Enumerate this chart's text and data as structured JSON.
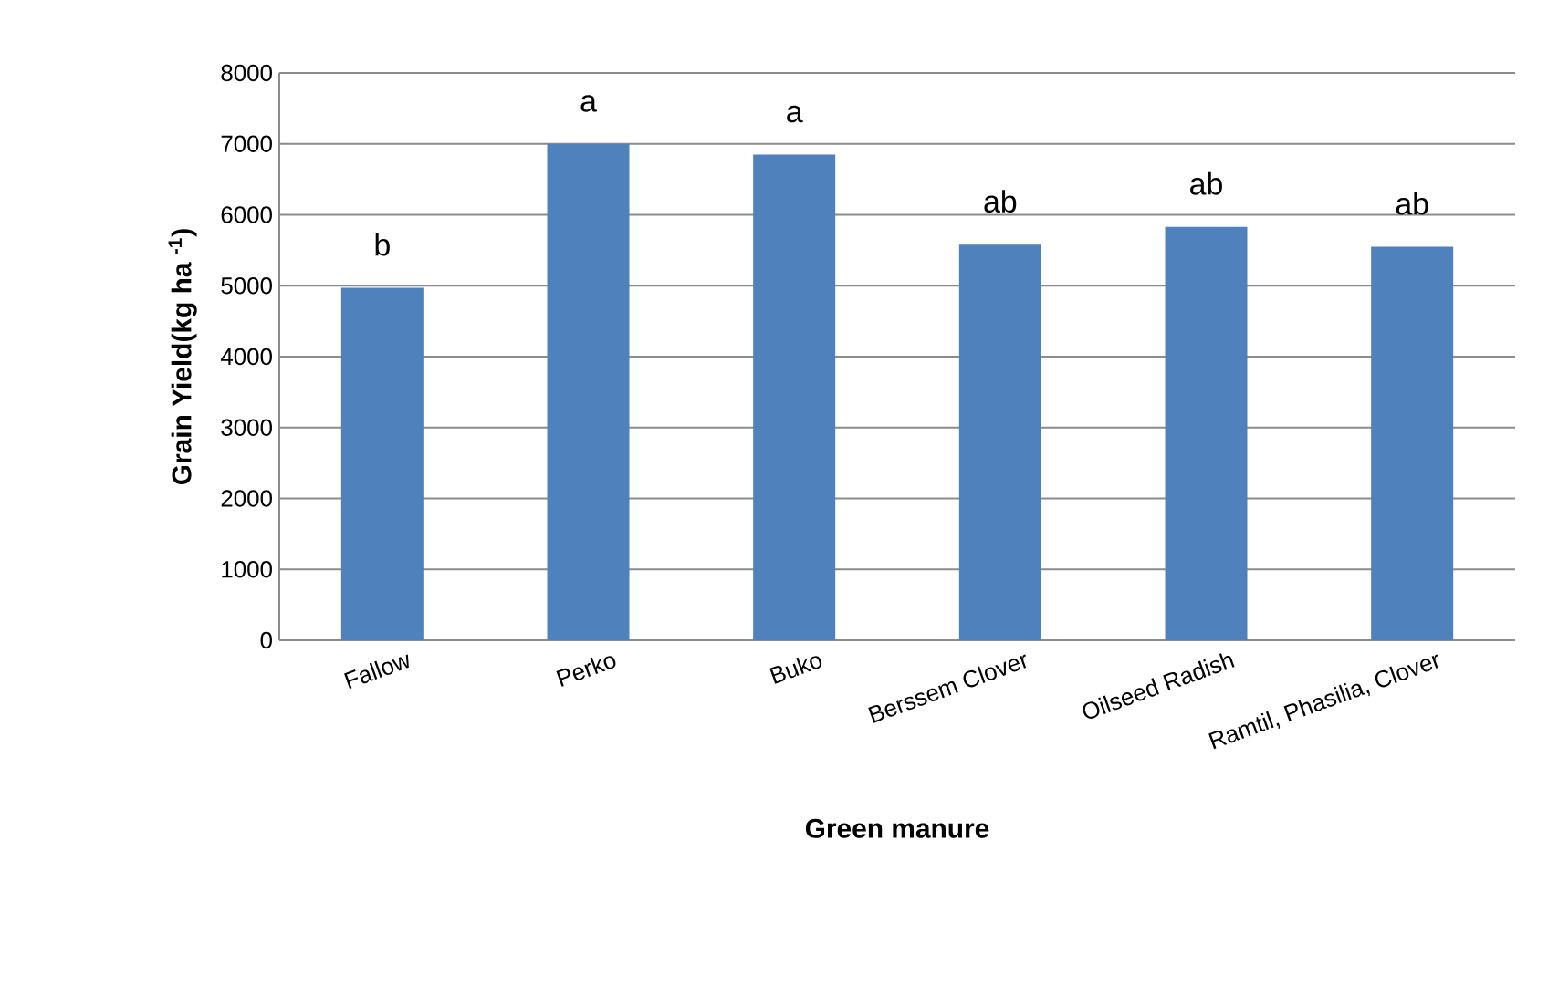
{
  "chart_data": {
    "type": "bar",
    "xlabel": "Green manure",
    "ylabel": "Grain Yield(kg ha $^{-1}$)",
    "categories": [
      "Fallow",
      "Perko",
      "Buko",
      "Berssem Clover",
      "Oilseed Radish",
      "Ramtil, Phasilia, Clover"
    ],
    "values": [
      4970,
      7000,
      6850,
      5580,
      5830,
      5550
    ],
    "color": "#4f81bd",
    "ylim": [
      0,
      8000
    ],
    "yticks": [
      0,
      1000,
      2000,
      3000,
      4000,
      5000,
      6000,
      7000,
      8000
    ],
    "grid": "y",
    "annotations": [
      {
        "text": "b",
        "x": "Fallow",
        "y": 4970
      },
      {
        "text": "a",
        "x": "Perko",
        "y": 7000
      },
      {
        "text": "a",
        "x": "Buko",
        "y": 6850
      },
      {
        "text": "ab",
        "x": "Berssem Clover",
        "y": 5580
      },
      {
        "text": "ab",
        "x": "Oilseed Radish",
        "y": 5830
      },
      {
        "text": "ab",
        "x": "Ramtil, Phasilia, Clover",
        "y": 5550
      }
    ]
  }
}
